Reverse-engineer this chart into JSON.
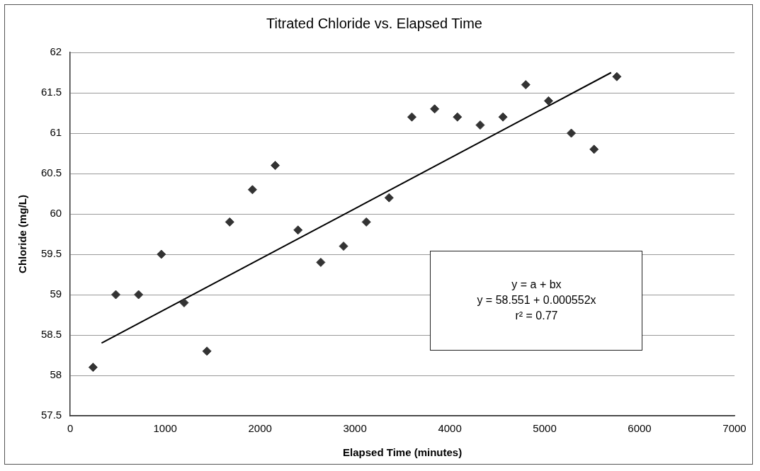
{
  "chart_data": {
    "type": "scatter",
    "title": "Titrated Chloride vs. Elapsed Time",
    "xlabel": "Elapsed Time (minutes)",
    "ylabel": "Chloride (mg/L)",
    "series": [
      {
        "color": "#333333",
        "x": [
          240,
          480,
          720,
          960,
          1200,
          1440,
          1680,
          1920,
          2160,
          2400,
          2640,
          2880,
          3120,
          3360,
          3600,
          3840,
          4080,
          4320,
          4560,
          4800,
          5040,
          5280,
          5520,
          5760
        ],
        "values": [
          58.1,
          59.0,
          59.0,
          59.5,
          58.9,
          58.3,
          59.9,
          60.3,
          60.6,
          59.8,
          59.4,
          59.6,
          59.9,
          60.2,
          61.2,
          61.3,
          61.2,
          61.1,
          61.2,
          61.6,
          61.4,
          61.0,
          60.8,
          61.7
        ]
      },
      {
        "type": "line",
        "marker": "none",
        "color": "#000000",
        "x": [
          330,
          5700
        ],
        "values": [
          58.4,
          61.75
        ]
      }
    ],
    "annotations": [
      "y = a + bx",
      "y = 58.551 + 0.000552x",
      "r² = 0.77"
    ],
    "xlim": [
      0,
      7000
    ],
    "xticks": [
      0,
      1000,
      2000,
      3000,
      4000,
      5000,
      6000,
      7000
    ],
    "ylim": [
      57.5,
      62
    ],
    "yticks": [
      57.5,
      58,
      58.5,
      59,
      59.5,
      60,
      60.5,
      61,
      61.5,
      62
    ],
    "grid": "y",
    "legend": false,
    "marker": "diamond",
    "line_style": "solid"
  }
}
